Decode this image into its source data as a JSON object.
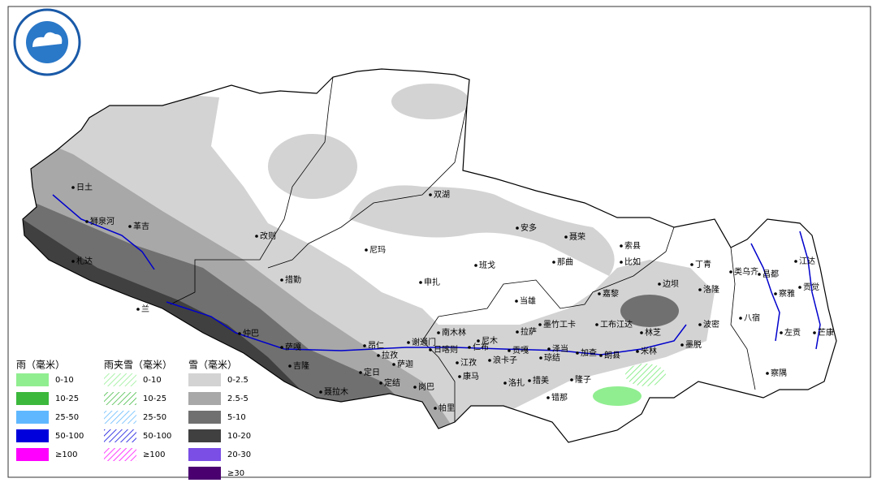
{
  "legend": {
    "rain": {
      "title": "雨（毫米）",
      "items": [
        {
          "label": "0-10",
          "color": "#90ee90"
        },
        {
          "label": "10-25",
          "color": "#3cb83c"
        },
        {
          "label": "25-50",
          "color": "#5fb8ff"
        },
        {
          "label": "50-100",
          "color": "#0000dd"
        },
        {
          "label": "≥100",
          "color": "#ff00ff"
        }
      ]
    },
    "sleet": {
      "title": "雨夹雪（毫米）",
      "items": [
        {
          "label": "0-10",
          "color": "#90ee90"
        },
        {
          "label": "10-25",
          "color": "#3cb83c"
        },
        {
          "label": "25-50",
          "color": "#5fb8ff"
        },
        {
          "label": "50-100",
          "color": "#0000dd"
        },
        {
          "label": "≥100",
          "color": "#ff00ff"
        }
      ]
    },
    "snow": {
      "title": "雪（毫米）",
      "items": [
        {
          "label": "0-2.5",
          "color": "#d3d3d3"
        },
        {
          "label": "2.5-5",
          "color": "#a8a8a8"
        },
        {
          "label": "5-10",
          "color": "#707070"
        },
        {
          "label": "10-20",
          "color": "#404040"
        },
        {
          "label": "20-30",
          "color": "#7b4ee6"
        },
        {
          "label": "≥30",
          "color": "#4b0070"
        }
      ]
    }
  },
  "cities": [
    "日土",
    "狮泉河",
    "革吉",
    "札达",
    "兰",
    "改则",
    "措勤",
    "尼玛",
    "双湖",
    "申扎",
    "班戈",
    "安多",
    "聂荣",
    "那曲",
    "索县",
    "比如",
    "丁青",
    "类乌齐",
    "昌都",
    "江达",
    "贡觉",
    "察雅",
    "边坝",
    "洛隆",
    "嘉黎",
    "当雄",
    "八宿",
    "左贡",
    "芒康",
    "察隅",
    "波密",
    "工布江达",
    "林芝",
    "米林",
    "墨脱",
    "墨竹工卡",
    "拉萨",
    "尼木",
    "南木林",
    "谢通门",
    "昂仁",
    "日喀则",
    "仁布",
    "贡嘎",
    "泽当",
    "琼结",
    "加查",
    "朗县",
    "拉孜",
    "萨迦",
    "江孜",
    "浪卡子",
    "定日",
    "吉隆",
    "聂拉木",
    "定结",
    "岗巴",
    "康马",
    "帕里",
    "洛扎",
    "措美",
    "隆子",
    "错那",
    "仲巴",
    "萨嘎"
  ]
}
